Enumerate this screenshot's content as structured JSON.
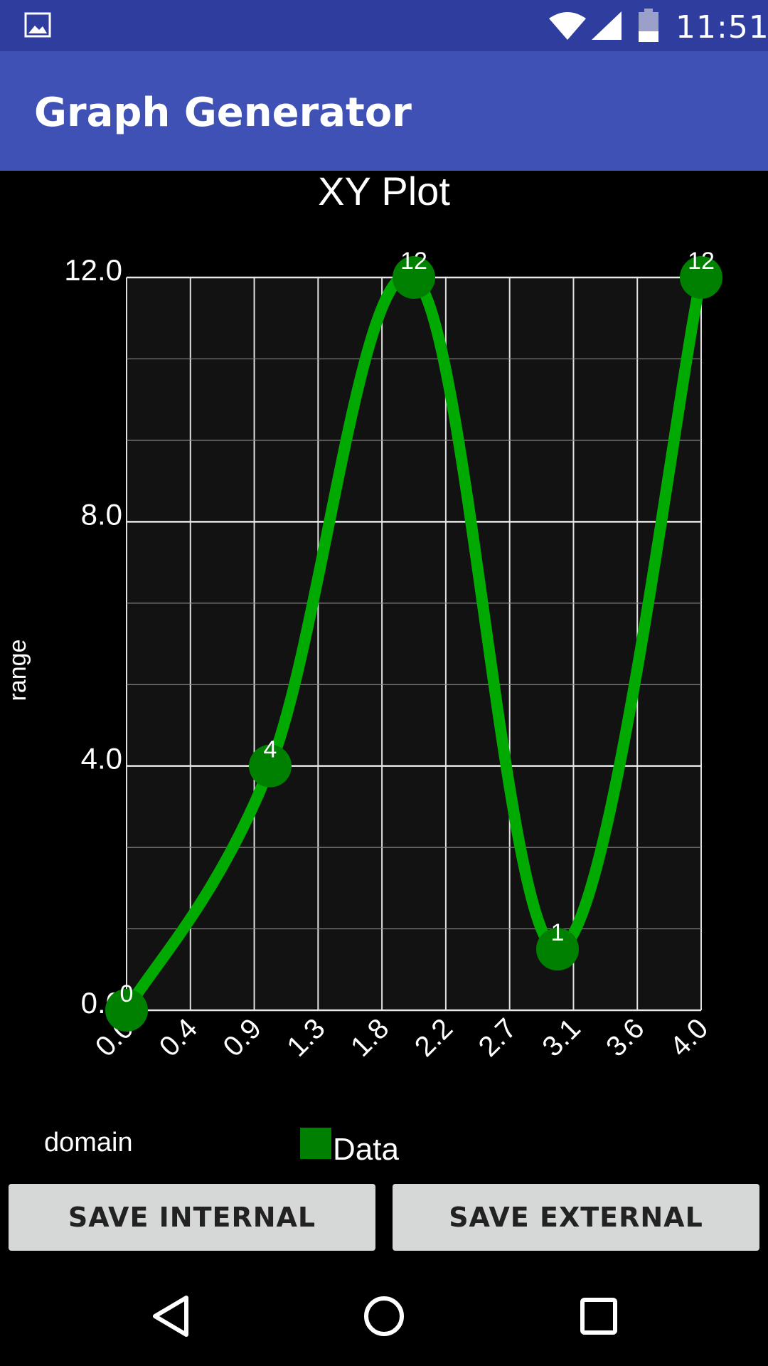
{
  "status": {
    "time": "11:51",
    "icons": [
      "image-icon",
      "wifi-icon",
      "signal-icon",
      "battery-icon"
    ]
  },
  "appbar": {
    "title": "Graph Generator"
  },
  "chart_data": {
    "type": "line",
    "title": "XY Plot",
    "xlabel": "domain",
    "ylabel": "range",
    "x": [
      0.0,
      1.0,
      2.0,
      3.0,
      4.0
    ],
    "series": [
      {
        "name": "Data",
        "values": [
          0,
          4,
          12,
          1,
          12
        ],
        "point_labels": [
          "0",
          "4",
          "12",
          "1",
          "12"
        ],
        "color": "#00aa00",
        "marker_color": "#008000"
      }
    ],
    "xlim": [
      0.0,
      4.0
    ],
    "ylim": [
      0.0,
      12.0
    ],
    "xticks": [
      "0.0",
      "0.4",
      "0.9",
      "1.3",
      "1.8",
      "2.2",
      "2.7",
      "3.1",
      "3.6",
      "4.0"
    ],
    "yticks": [
      "0.0",
      "4.0",
      "8.0",
      "12.0"
    ],
    "y_tick_values": [
      0,
      4,
      8,
      12
    ],
    "grid": true,
    "legend_position": "bottom",
    "smooth": true
  },
  "buttons": {
    "save_internal": "SAVE INTERNAL",
    "save_external": "SAVE EXTERNAL"
  },
  "navbar": {
    "icons": [
      "back-icon",
      "home-icon",
      "recents-icon"
    ]
  }
}
